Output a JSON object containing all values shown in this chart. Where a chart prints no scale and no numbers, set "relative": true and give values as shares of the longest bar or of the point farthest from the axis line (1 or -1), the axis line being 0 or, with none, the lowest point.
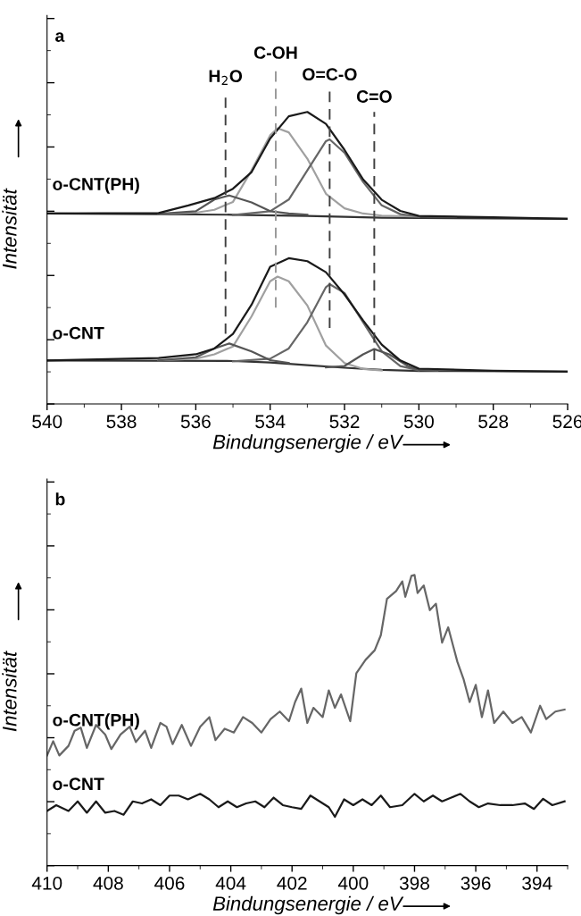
{
  "chart_data": [
    {
      "type": "line",
      "relative": true,
      "xlabel": "Bindungsenergie / eV",
      "ylabel": "Intensität",
      "xlim": [
        540,
        526
      ],
      "xticks": [
        540,
        538,
        536,
        534,
        532,
        530,
        528,
        526
      ],
      "tick_labels": "x",
      "annotations": [
        "a"
      ],
      "ref_lines": [
        {
          "axis": "x",
          "value": 535.2,
          "label": "H$_{2}$O",
          "color": "#404040",
          "line_style": "dashed"
        },
        {
          "axis": "x",
          "value": 533.85,
          "label": "C-OH",
          "color": "#999999",
          "line_style": "dashed"
        },
        {
          "axis": "x",
          "value": 532.4,
          "label": "O=C-O",
          "color": "#404040",
          "line_style": "dashed"
        },
        {
          "axis": "x",
          "value": 531.2,
          "label": "C=O",
          "color": "#404040",
          "line_style": "dashed"
        }
      ],
      "series": [
        {
          "color": "#333333",
          "x": [
            540,
            535,
            533,
            531,
            526
          ],
          "values": [
            0.652,
            0.648,
            0.644,
            0.638,
            0.634
          ]
        },
        {
          "color": "#a0a0a0",
          "x": [
            537,
            536,
            535.5,
            535,
            534.5,
            534,
            533.8,
            533.5,
            533,
            532.5,
            532,
            531.5,
            531,
            530
          ],
          "values": [
            0.651,
            0.655,
            0.665,
            0.692,
            0.8,
            0.92,
            0.944,
            0.93,
            0.84,
            0.72,
            0.67,
            0.652,
            0.645,
            0.642
          ]
        },
        {
          "color": "#666666",
          "x": [
            535,
            534,
            533.5,
            533,
            532.5,
            532.4,
            532,
            531.5,
            531,
            530.5,
            530,
            529
          ],
          "values": [
            0.647,
            0.66,
            0.7,
            0.8,
            0.9,
            0.906,
            0.86,
            0.76,
            0.68,
            0.65,
            0.642,
            0.64
          ]
        },
        {
          "color": "#555555",
          "x": [
            537,
            536,
            535.5,
            535.1,
            534.5,
            534,
            533.5,
            533
          ],
          "values": [
            0.651,
            0.66,
            0.7,
            0.714,
            0.69,
            0.66,
            0.652,
            0.648
          ]
        },
        {
          "name": "o-CNT(PH)",
          "color": "#1a1a1a",
          "x": [
            540,
            537,
            536.2,
            535.5,
            535,
            534.5,
            534,
            533.5,
            533,
            532.5,
            532,
            531.5,
            531,
            530.5,
            530,
            528,
            526
          ],
          "values": [
            0.652,
            0.654,
            0.68,
            0.705,
            0.737,
            0.794,
            0.909,
            0.985,
            1.0,
            0.959,
            0.87,
            0.769,
            0.699,
            0.661,
            0.644,
            0.639,
            0.634
          ]
        },
        {
          "color": "#333333",
          "x": [
            540,
            535,
            534,
            533,
            532,
            531,
            530,
            526
          ],
          "values": [
            0.149,
            0.147,
            0.142,
            0.133,
            0.124,
            0.117,
            0.113,
            0.111
          ]
        },
        {
          "color": "#a0a0a0",
          "x": [
            537,
            536,
            535.5,
            535,
            534.5,
            534,
            533.8,
            533.5,
            533,
            532.5,
            532,
            531.5,
            531
          ],
          "values": [
            0.15,
            0.155,
            0.17,
            0.197,
            0.3,
            0.42,
            0.436,
            0.42,
            0.337,
            0.2,
            0.14,
            0.12,
            0.115
          ]
        },
        {
          "color": "#666666",
          "x": [
            535,
            534,
            533.5,
            533,
            532.5,
            532.4,
            532,
            531.5,
            531,
            530.5,
            530
          ],
          "values": [
            0.146,
            0.155,
            0.19,
            0.28,
            0.4,
            0.41,
            0.38,
            0.28,
            0.18,
            0.13,
            0.115
          ]
        },
        {
          "color": "#555555",
          "x": [
            537,
            536,
            535.5,
            535.1,
            534.5,
            534,
            533.5
          ],
          "values": [
            0.149,
            0.16,
            0.19,
            0.207,
            0.18,
            0.15,
            0.14
          ]
        },
        {
          "color": "#555555",
          "x": [
            532.5,
            532,
            531.5,
            531.2,
            530.8,
            530.3,
            530,
            529.5
          ],
          "values": [
            0.125,
            0.13,
            0.17,
            0.188,
            0.17,
            0.13,
            0.117,
            0.114
          ]
        },
        {
          "name": "o-CNT",
          "color": "#1a1a1a",
          "x": [
            540,
            537,
            536,
            535.5,
            535,
            534.5,
            534,
            533.5,
            533,
            532.5,
            532,
            531.5,
            531,
            530.5,
            530,
            528,
            526
          ],
          "values": [
            0.149,
            0.157,
            0.17,
            0.19,
            0.24,
            0.34,
            0.47,
            0.499,
            0.489,
            0.451,
            0.375,
            0.286,
            0.203,
            0.149,
            0.121,
            0.114,
            0.111
          ]
        }
      ]
    },
    {
      "type": "line",
      "relative": true,
      "xlabel": "Bindungsenergie / eV",
      "ylabel": "Intensität",
      "xlim": [
        410,
        393
      ],
      "xticks": [
        410,
        408,
        406,
        404,
        402,
        400,
        398,
        396,
        394
      ],
      "tick_labels": "x",
      "annotations": [
        "b"
      ],
      "series": [
        {
          "name": "o-CNT(PH)",
          "color": "#666666",
          "x": [
            410,
            409.8,
            409.6,
            409.3,
            409.1,
            408.9,
            408.7,
            408.4,
            408.1,
            407.9,
            407.6,
            407.3,
            407.1,
            406.8,
            406.6,
            406.3,
            406.1,
            405.9,
            405.6,
            405.3,
            405.0,
            404.7,
            404.5,
            404.2,
            403.9,
            403.6,
            403.3,
            403.0,
            402.7,
            402.4,
            402.1,
            401.9,
            401.7,
            401.5,
            401.3,
            401.0,
            400.8,
            400.6,
            400.4,
            400.1,
            399.9,
            399.6,
            399.3,
            399.1,
            398.9,
            398.6,
            398.4,
            398.3,
            398.1,
            398.0,
            397.9,
            397.7,
            397.5,
            397.3,
            397.1,
            396.9,
            396.6,
            396.4,
            396.2,
            396.0,
            395.8,
            395.6,
            395.4,
            395.1,
            394.8,
            394.5,
            394.2,
            393.9,
            393.7,
            393.4,
            393.1
          ],
          "values": [
            0.379,
            0.428,
            0.379,
            0.412,
            0.464,
            0.475,
            0.405,
            0.484,
            0.451,
            0.401,
            0.451,
            0.478,
            0.425,
            0.464,
            0.405,
            0.491,
            0.478,
            0.418,
            0.484,
            0.412,
            0.478,
            0.511,
            0.432,
            0.471,
            0.458,
            0.511,
            0.491,
            0.458,
            0.504,
            0.53,
            0.497,
            0.563,
            0.609,
            0.491,
            0.543,
            0.511,
            0.603,
            0.543,
            0.589,
            0.497,
            0.662,
            0.708,
            0.741,
            0.793,
            0.918,
            0.945,
            0.978,
            0.925,
            0.997,
            1.0,
            0.938,
            0.964,
            0.879,
            0.901,
            0.767,
            0.82,
            0.701,
            0.642,
            0.563,
            0.622,
            0.511,
            0.603,
            0.491,
            0.53,
            0.491,
            0.511,
            0.458,
            0.55,
            0.504,
            0.53,
            0.537
          ]
        },
        {
          "name": "o-CNT",
          "color": "#1a1a1a",
          "x": [
            410,
            409.7,
            409.3,
            409.0,
            408.7,
            408.4,
            408.1,
            407.8,
            407.5,
            407.2,
            406.9,
            406.6,
            406.3,
            406.0,
            405.7,
            405.4,
            405.0,
            404.7,
            404.4,
            404.1,
            403.8,
            403.5,
            403.2,
            402.9,
            402.6,
            402.3,
            402.0,
            401.7,
            401.4,
            401.1,
            400.8,
            400.6,
            400.3,
            400.0,
            399.7,
            399.4,
            399.1,
            398.8,
            398.4,
            398.0,
            397.7,
            397.4,
            397.1,
            396.8,
            396.5,
            396.2,
            395.9,
            395.6,
            395.2,
            394.8,
            394.4,
            394.1,
            393.8,
            393.5,
            393.1
          ],
          "values": [
            0.188,
            0.208,
            0.188,
            0.221,
            0.182,
            0.221,
            0.182,
            0.188,
            0.175,
            0.221,
            0.214,
            0.228,
            0.208,
            0.241,
            0.241,
            0.228,
            0.247,
            0.228,
            0.201,
            0.221,
            0.201,
            0.214,
            0.221,
            0.201,
            0.234,
            0.208,
            0.201,
            0.195,
            0.241,
            0.221,
            0.201,
            0.168,
            0.228,
            0.208,
            0.228,
            0.208,
            0.241,
            0.201,
            0.208,
            0.247,
            0.221,
            0.241,
            0.221,
            0.234,
            0.247,
            0.221,
            0.201,
            0.214,
            0.208,
            0.208,
            0.214,
            0.195,
            0.23,
            0.208,
            0.221
          ]
        }
      ]
    }
  ]
}
